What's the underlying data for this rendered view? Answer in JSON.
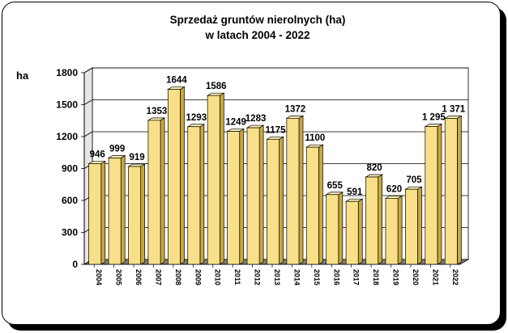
{
  "chart_data": {
    "type": "bar",
    "title": "Sprzedaż gruntów nierolnych (ha)",
    "subtitle": "w latach 2004 - 2022",
    "ylabel": "ha",
    "ylim": [
      0,
      1800
    ],
    "yticks": [
      "0",
      "300",
      "600",
      "900",
      "1200",
      "1500",
      "1800"
    ],
    "grid": true,
    "legend": "none",
    "categories": [
      "2004",
      "2005",
      "2006",
      "2007",
      "2008",
      "2009",
      "2010",
      "2011",
      "2012",
      "2013",
      "2014",
      "2015",
      "2016",
      "2017",
      "2018",
      "2019",
      "2020",
      "2021",
      "2022"
    ],
    "values": [
      946,
      999,
      919,
      1353,
      1644,
      1293,
      1586,
      1249,
      1283,
      1175,
      1372,
      1100,
      655,
      591,
      820,
      620,
      705,
      1295,
      1371
    ],
    "value_labels": [
      "946",
      "999",
      "919",
      "1353",
      "1644",
      "1293",
      "1586",
      "1249",
      "1283",
      "1175",
      "1372",
      "1100",
      "655",
      "591",
      "820",
      "620",
      "705",
      "1 295",
      "1 371"
    ],
    "colors": {
      "bar_front": "#f8e08a",
      "bar_side": "#c9a73a",
      "bar_top": "#fbeeb8",
      "wall": "#ffffff",
      "floor": "#808080"
    }
  }
}
